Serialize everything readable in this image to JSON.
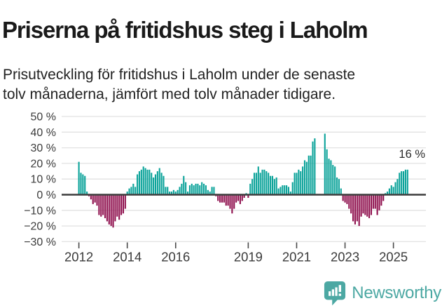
{
  "header": {
    "title": "Priserna på fritidshus steg i Laholm",
    "subtitle_lines": [
      "Prisutveckling för fritidshus i Laholm under de senaste",
      "tolv månaderna, jämfört med tolv månader tidigare."
    ]
  },
  "chart_data": {
    "type": "bar",
    "title": "Priserna på fritidshus steg i Laholm",
    "unit": "%",
    "x_start_month": "2012-01",
    "x_end_month": "2025-08",
    "values": [
      21,
      14,
      13,
      12,
      2,
      -1,
      -3,
      -6,
      -5,
      -7,
      -13,
      -14,
      -13,
      -15,
      -17,
      -19,
      -20,
      -21,
      -17,
      -14,
      -16,
      -13,
      -12,
      -9,
      2,
      4,
      5,
      7,
      5,
      13,
      15,
      16,
      18,
      17,
      16,
      16,
      14,
      11,
      13,
      15,
      17,
      14,
      12,
      5,
      5,
      2,
      2,
      3,
      2,
      3,
      5,
      7,
      12,
      8,
      2,
      6,
      7,
      6,
      7,
      7,
      6,
      8,
      7,
      6,
      3,
      2,
      5,
      5,
      -1,
      -4,
      -5,
      -5,
      -5,
      -7,
      -7,
      -9,
      -12,
      -9,
      -5,
      -4,
      -6,
      -4,
      -2,
      1,
      -2,
      7,
      10,
      14,
      14,
      18,
      14,
      16,
      16,
      15,
      14,
      12,
      12,
      10,
      11,
      4,
      5,
      6,
      6,
      6,
      5,
      2,
      8,
      14,
      14,
      16,
      15,
      18,
      22,
      21,
      25,
      25,
      34,
      36,
      0,
      0,
      0,
      0,
      39,
      29,
      23,
      22,
      19,
      18,
      11,
      10,
      4,
      -4,
      -5,
      -6,
      -9,
      -12,
      -17,
      -19,
      -17,
      -20,
      -14,
      -12,
      -13,
      -14,
      -15,
      -13,
      -9,
      -9,
      -13,
      -10,
      -7,
      -4,
      1,
      2,
      4,
      6,
      5,
      8,
      10,
      14,
      15,
      15,
      16,
      16
    ],
    "ylim": [
      -30,
      50
    ],
    "grid": true,
    "legend": null,
    "y_ticks": [
      {
        "value": 50,
        "label": "50 %"
      },
      {
        "value": 40,
        "label": "40 %"
      },
      {
        "value": 30,
        "label": "30 %"
      },
      {
        "value": 20,
        "label": "20 %"
      },
      {
        "value": 10,
        "label": "10 %"
      },
      {
        "value": 0,
        "label": "0 %"
      },
      {
        "value": -10,
        "label": "−10 %"
      },
      {
        "value": -20,
        "label": "−20 %"
      },
      {
        "value": -30,
        "label": "−30 %"
      }
    ],
    "x_ticks": [
      {
        "year": 2012,
        "label": "2012"
      },
      {
        "year": 2014,
        "label": "2014"
      },
      {
        "year": 2016,
        "label": "2016"
      },
      {
        "year": 2019,
        "label": "2019"
      },
      {
        "year": 2021,
        "label": "2021"
      },
      {
        "year": 2023,
        "label": "2023"
      },
      {
        "year": 2025,
        "label": "2025"
      }
    ],
    "annotation": {
      "text": "16 %",
      "value": 16,
      "month": "2025-08"
    },
    "colors": {
      "positive": "#0CA39A",
      "negative": "#8F104E",
      "grid": "#E2E2E2",
      "axis": "#3D3D3D",
      "tick_text": "#3B3B3B",
      "annotation_text": "#2B2B2B"
    }
  },
  "footer": {
    "brand": "Newsworthy",
    "brand_color": "#4CA8A3",
    "icon": "newsworthy-chart-bubble-icon"
  }
}
